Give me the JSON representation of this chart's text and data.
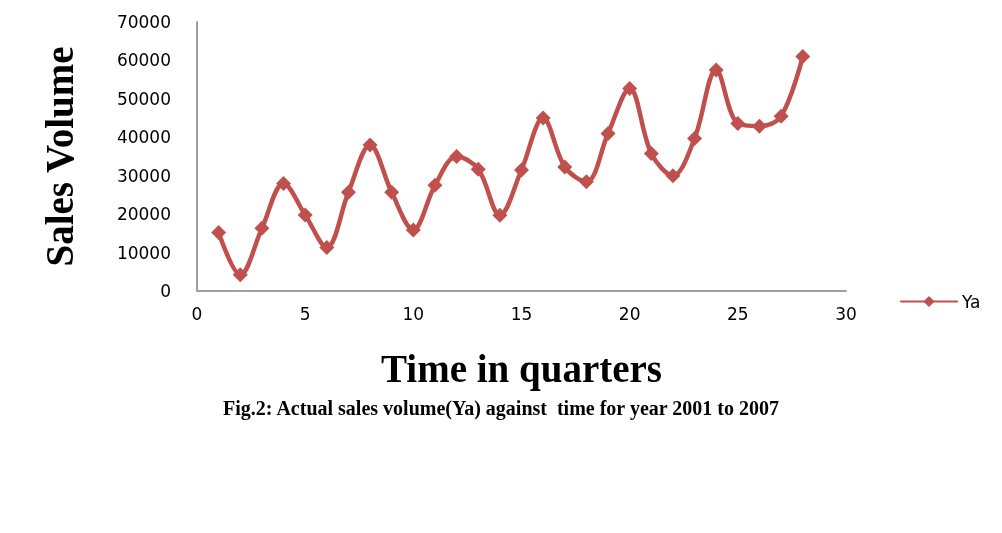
{
  "chart_data": {
    "type": "line",
    "title": "Fig.2: Actual sales volume(Ya) against  time for year 2001 to 2007",
    "xlabel": "Time in quarters",
    "ylabel": "Sales Volume",
    "x": [
      1,
      2,
      3,
      4,
      5,
      6,
      7,
      8,
      9,
      10,
      11,
      12,
      13,
      14,
      15,
      16,
      17,
      18,
      19,
      20,
      21,
      22,
      23,
      24,
      25,
      26,
      27,
      28
    ],
    "series": [
      {
        "name": "Ya",
        "color": "#c0504d",
        "values": [
          15200,
          4200,
          16300,
          28000,
          19800,
          11300,
          25700,
          38000,
          25700,
          15900,
          27500,
          35000,
          31700,
          19700,
          31500,
          45000,
          32300,
          28400,
          41000,
          52700,
          35800,
          30000,
          39700,
          57500,
          43600,
          42900,
          45500,
          61000
        ]
      }
    ],
    "xlim": [
      0,
      30
    ],
    "xticks": [
      0,
      5,
      10,
      15,
      20,
      25,
      30
    ],
    "ylim": [
      0,
      70000
    ],
    "yticks": [
      0,
      10000,
      20000,
      30000,
      40000,
      50000,
      60000,
      70000
    ],
    "grid": false,
    "legend": "right",
    "marker": "diamond",
    "line_style": "solid"
  }
}
